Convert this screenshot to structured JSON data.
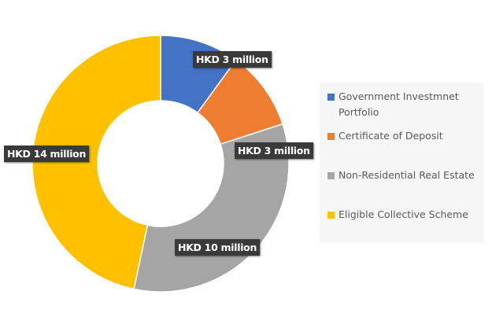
{
  "chart_data": {
    "type": "pie",
    "donut": true,
    "unit": "HKD million",
    "categories": [
      "Government Investmnet Portfolio",
      "Certificate of Deposit",
      "Non-Residential Real Estate",
      "Eligible Collective Scheme"
    ],
    "values": [
      3,
      3,
      10,
      14
    ],
    "data_labels": [
      "HKD 3 million",
      "HKD 3 million",
      "HKD 10 million",
      "HKD 14 million"
    ],
    "colors": [
      "#4472c4",
      "#ed7d31",
      "#a5a5a5",
      "#ffc000"
    ],
    "legend_placement": "right",
    "start_angle": "top, clockwise"
  }
}
